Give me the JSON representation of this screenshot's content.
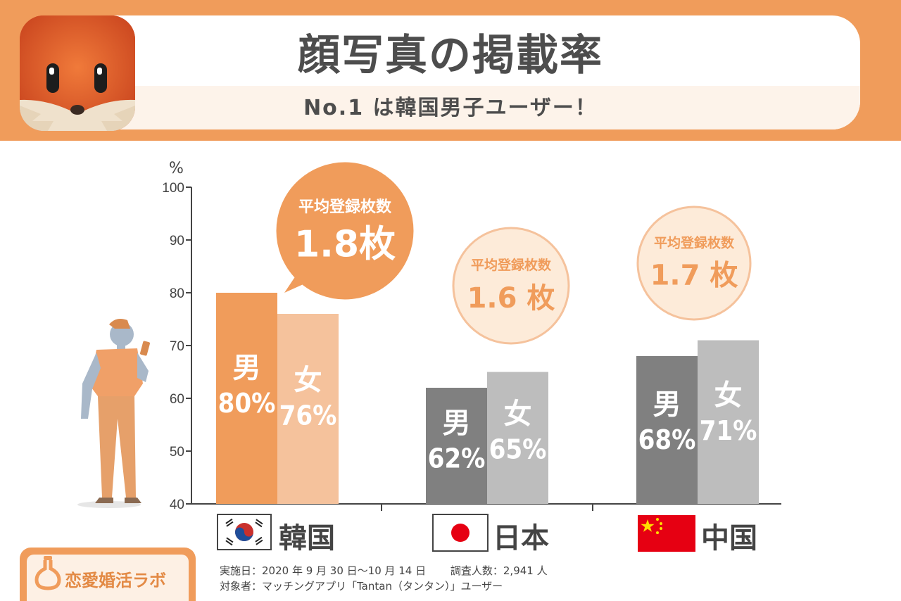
{
  "header": {
    "title": "顔写真の掲載率",
    "subtitle": "No.1 は韓国男子ユーザー！"
  },
  "footer": {
    "brand": "恋愛婚活ラボ",
    "survey_line": "実施日：2020 年 9 月 30 日〜10 月 14 日　　 調査人数：2,941 人",
    "target_line": "対象者：マッチングアプリ「Tantan（タンタン）」ユーザー"
  },
  "countries": [
    {
      "name": "韓国",
      "flag": "korea-flag"
    },
    {
      "name": "日本",
      "flag": "japan-flag"
    },
    {
      "name": "中国",
      "flag": "china-flag"
    }
  ],
  "colors": {
    "header": "#f09c5b",
    "korea_male": "#f09c5b",
    "korea_female": "#f5c29c",
    "male_gray": "#808080",
    "female_gray": "#bdbdbd",
    "bubble_fill": "#fdebd9",
    "bubble_stroke": "#f5c29c",
    "bubble_text": "#f09c5b"
  },
  "chart_data": {
    "type": "bar",
    "ylabel": "%",
    "ylim": [
      40,
      100
    ],
    "yticks": [
      40,
      50,
      60,
      70,
      80,
      90,
      100
    ],
    "categories": [
      "韓国",
      "日本",
      "中国"
    ],
    "series": [
      {
        "name": "男",
        "values": [
          80,
          62,
          68
        ],
        "labels": [
          "80%",
          "62%",
          "68%"
        ]
      },
      {
        "name": "女",
        "values": [
          76,
          65,
          71
        ],
        "labels": [
          "76%",
          "65%",
          "71%"
        ]
      }
    ],
    "annotations": [
      {
        "category": "韓国",
        "heading": "平均登録枚数",
        "value": "1.8枚"
      },
      {
        "category": "日本",
        "heading": "平均登録枚数",
        "value": "1.6 枚"
      },
      {
        "category": "中国",
        "heading": "平均登録枚数",
        "value": "1.7 枚"
      }
    ]
  }
}
